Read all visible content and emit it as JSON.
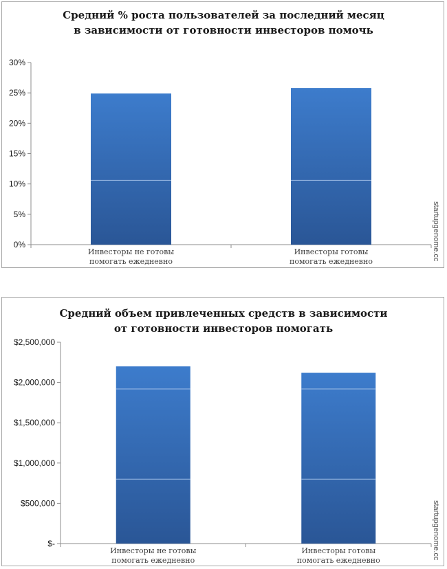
{
  "chart_data": [
    {
      "type": "bar",
      "title_lines": [
        "Средний % роста пользователей за последний месяц",
        "в зависимости от готовности инвесторов помочь"
      ],
      "categories": [
        [
          "Инвесторы не готовы",
          "помогать ежедневно"
        ],
        [
          "Инвесторы готовы",
          "помогать ежедневно"
        ]
      ],
      "values": [
        0.249,
        0.258
      ],
      "ylim": [
        0,
        0.3
      ],
      "yticks": [
        0,
        0.05,
        0.1,
        0.15,
        0.2,
        0.25,
        0.3
      ],
      "ytick_labels": [
        "0%",
        "5%",
        "10%",
        "15%",
        "20%",
        "25%",
        "30%"
      ],
      "xlabel": "",
      "ylabel": "",
      "grid": false,
      "bar_color_top": "#3d7ccc",
      "bar_color_bottom": "#2a5696",
      "watermark": "startupgenome.cc"
    },
    {
      "type": "bar",
      "title_lines": [
        "Средний объем привлеченных средств в зависимости",
        "от готовности инвесторов помогать"
      ],
      "categories": [
        [
          "Инвесторы не готовы",
          "помогать ежедневно"
        ],
        [
          "Инвесторы готовы",
          "помогать ежедневно"
        ]
      ],
      "values": [
        2200000,
        2120000
      ],
      "ylim": [
        0,
        2500000
      ],
      "yticks": [
        0,
        500000,
        1000000,
        1500000,
        2000000,
        2500000
      ],
      "ytick_labels": [
        "$-",
        "$500,000",
        "$1,000,000",
        "$1,500,000",
        "$2,000,000",
        "$2,500,000"
      ],
      "xlabel": "",
      "ylabel": "",
      "grid": false,
      "bar_color_top": "#3d7ccc",
      "bar_color_bottom": "#2a5696",
      "watermark": "startupgenome.cc"
    }
  ]
}
